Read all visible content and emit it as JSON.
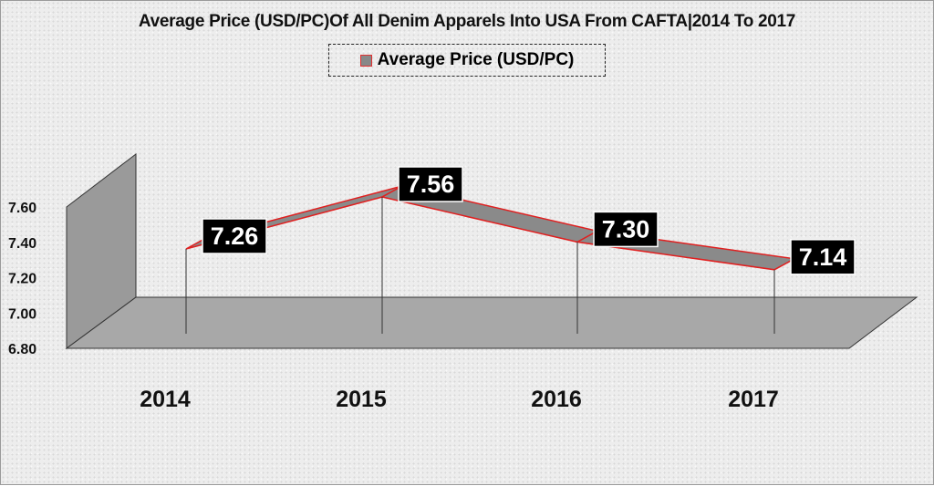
{
  "chart_data": {
    "type": "line",
    "style": "3d-ribbon",
    "title": "Average Price (USD/PC)Of All Denim Apparels Into USA From CAFTA|2014 To 2017",
    "categories": [
      "2014",
      "2015",
      "2016",
      "2017"
    ],
    "series": [
      {
        "name": "Average Price (USD/PC)",
        "values": [
          7.26,
          7.56,
          7.3,
          7.14
        ],
        "data_labels": [
          "7.26",
          "7.56",
          "7.30",
          "7.14"
        ]
      }
    ],
    "y_ticks": [
      "6.80",
      "7.00",
      "7.20",
      "7.40",
      "7.60"
    ],
    "ylim": [
      6.8,
      7.6
    ],
    "legend_position": "top",
    "grid": false,
    "colors": {
      "ribbon": "#8a8a8a",
      "ribbon_edge": "#e02020",
      "label_bg": "#000000",
      "label_text": "#ffffff",
      "wall": "#9a9a9a"
    }
  }
}
